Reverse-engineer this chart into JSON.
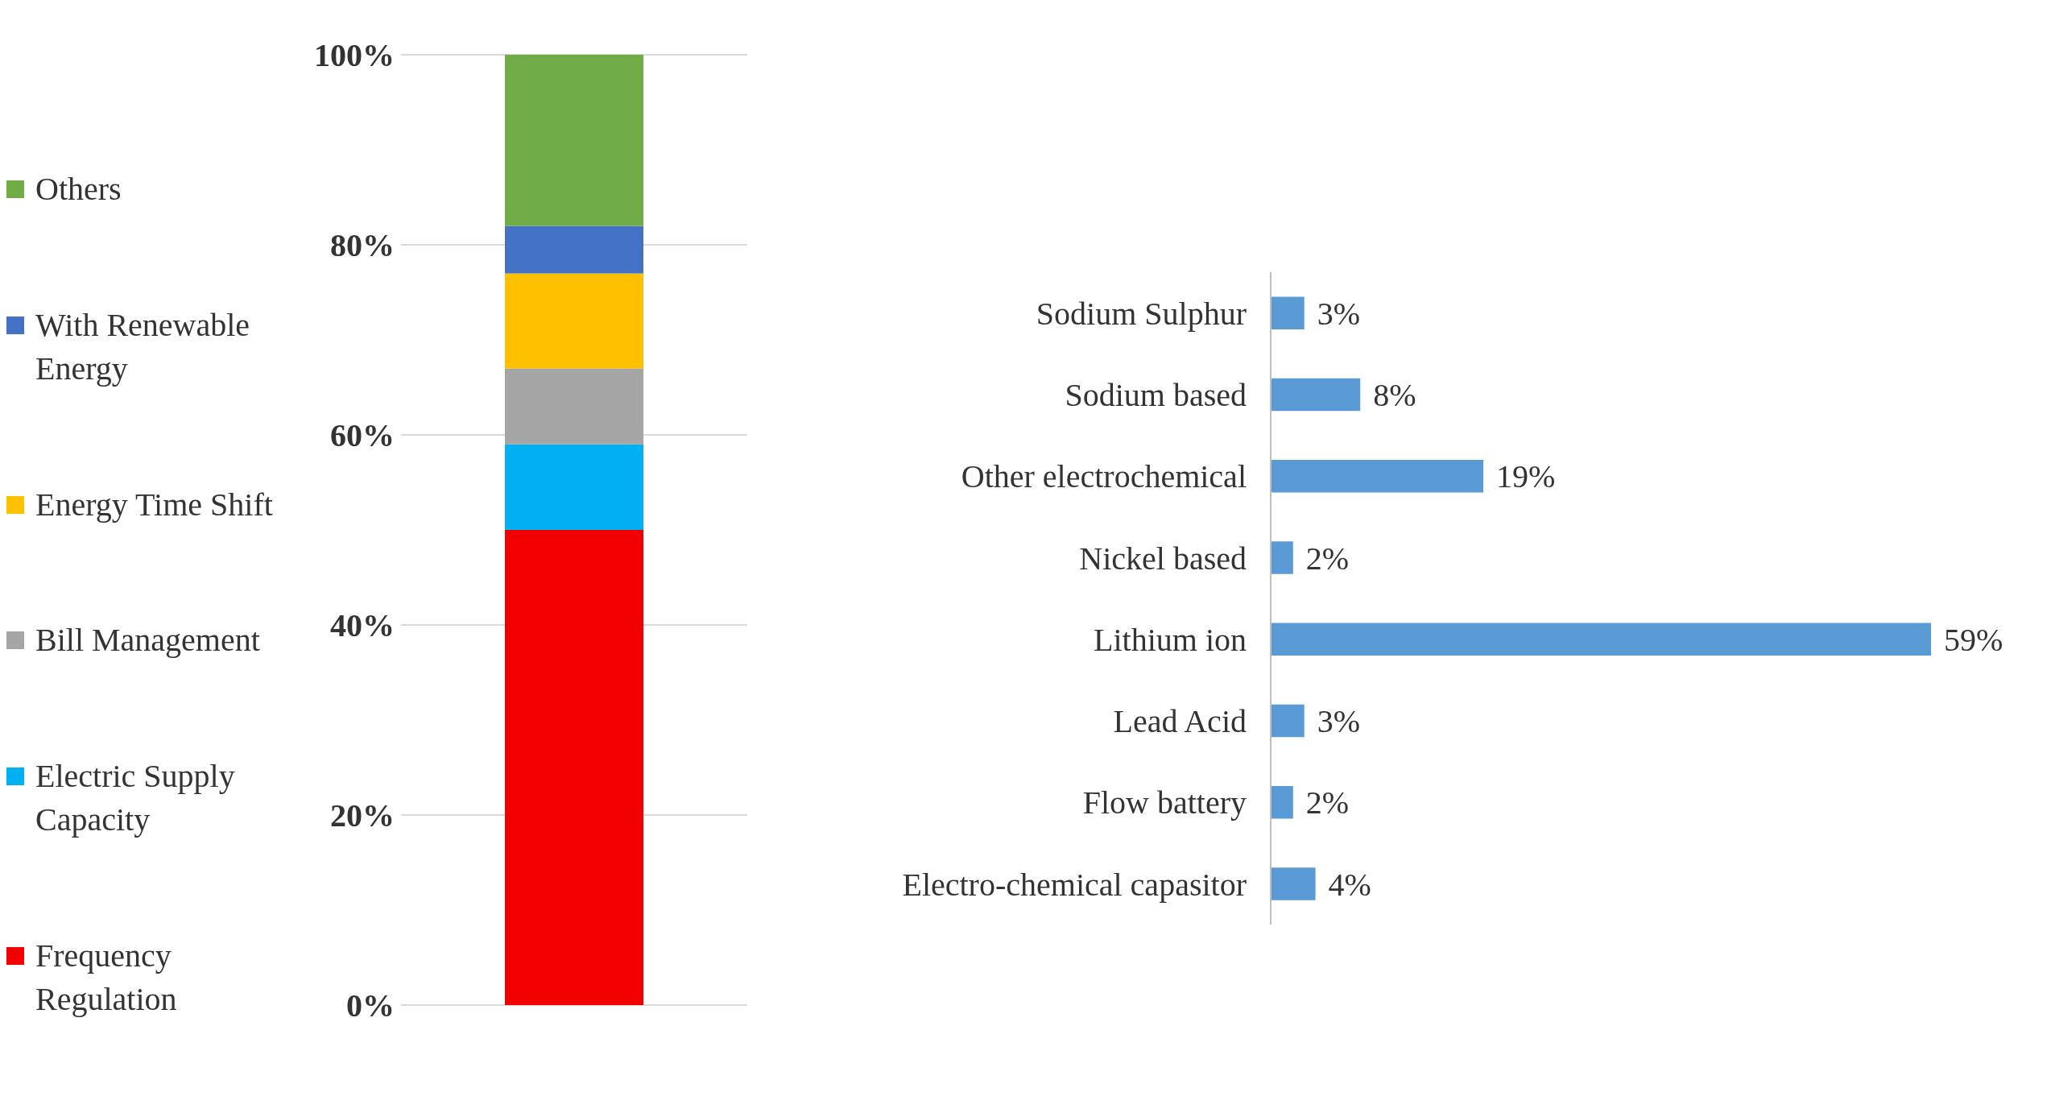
{
  "chart_data": [
    {
      "type": "bar",
      "stacked": true,
      "categories": [
        null
      ],
      "series": [
        {
          "name": "Frequency Regulation",
          "color": "#f20000",
          "values": [
            50
          ]
        },
        {
          "name": "Electric Supply Capacity",
          "color": "#00b0f0",
          "values": [
            9
          ]
        },
        {
          "name": "Bill Management",
          "color": "#a5a5a5",
          "values": [
            8
          ]
        },
        {
          "name": "Energy Time Shift",
          "color": "#ffc000",
          "values": [
            10
          ]
        },
        {
          "name": "With Renewable Energy",
          "color": "#4472c4",
          "values": [
            5
          ]
        },
        {
          "name": "Others",
          "color": "#70ad47",
          "values": [
            18
          ]
        }
      ],
      "ylim": [
        0,
        100
      ],
      "yticks": [
        {
          "value": 0,
          "label": "0%"
        },
        {
          "value": 20,
          "label": "20%"
        },
        {
          "value": 40,
          "label": "40%"
        },
        {
          "value": 60,
          "label": "60%"
        },
        {
          "value": 80,
          "label": "80%"
        },
        {
          "value": 100,
          "label": "100%"
        }
      ],
      "grid": "y",
      "legend": "left"
    },
    {
      "type": "bar",
      "orientation": "horizontal",
      "categories": [
        "Sodium  Sulphur",
        "Sodium based",
        "Other electrochemical",
        "Nickel based",
        "Lithium ion",
        "Lead Acid",
        "Flow battery",
        "Electro-chemical capasitor"
      ],
      "values": [
        3,
        8,
        19,
        2,
        59,
        3,
        2,
        4
      ],
      "value_labels": [
        "3%",
        "8%",
        "19%",
        "2%",
        "59%",
        "3%",
        "2%",
        "4%"
      ],
      "color": "#5b9bd5"
    }
  ]
}
